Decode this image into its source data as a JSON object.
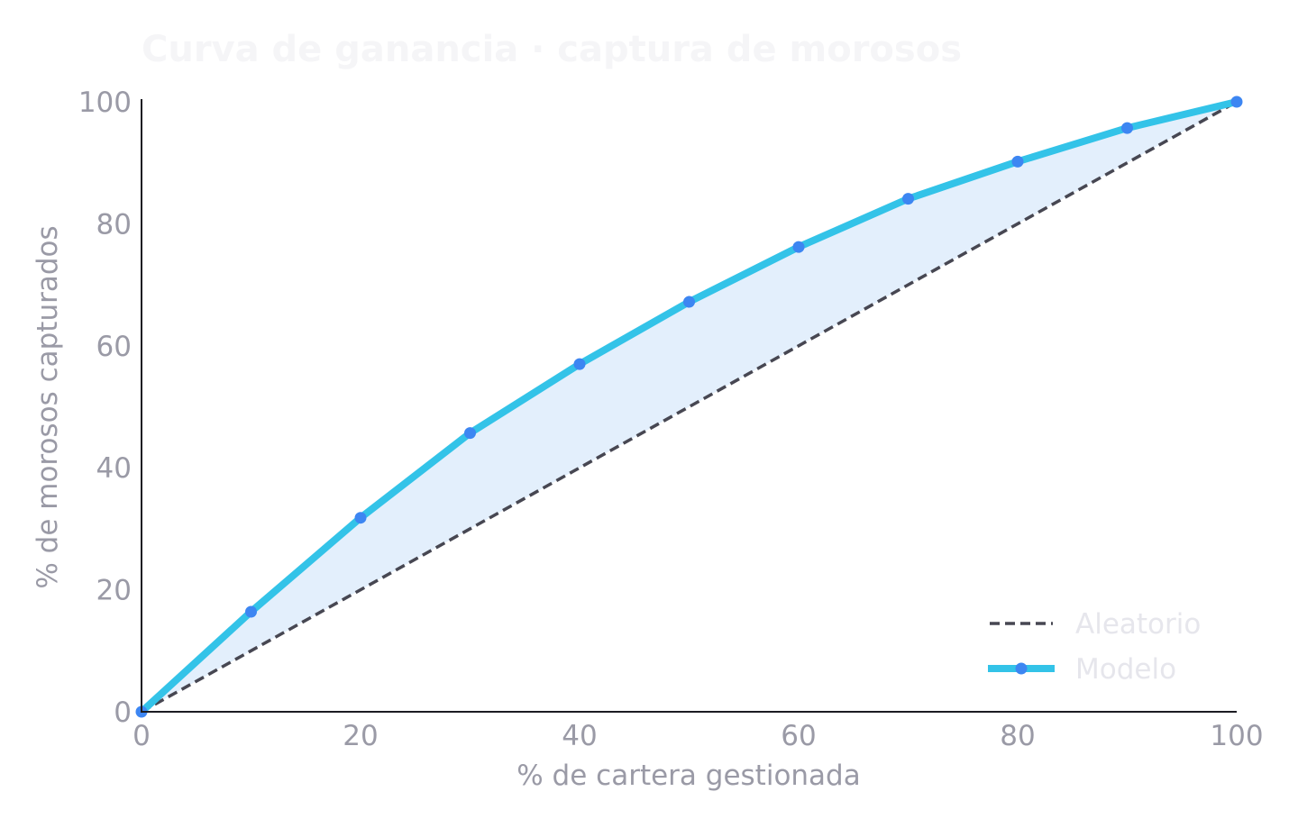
{
  "colors": {
    "title": "#f5f5f7",
    "axis_line": "#1c1c22",
    "tick_text": "#9a9aa6",
    "axis_title": "#9a9aa6",
    "legend_text": "#e6e6ec",
    "random_line": "#474752",
    "model_line": "#33c3e8",
    "model_marker": "#3d86f2",
    "fill_area": "#e3effc"
  },
  "chart_data": {
    "type": "line",
    "title": "Curva de ganancia  ·  captura de morosos",
    "xlabel": "% de cartera gestionada",
    "ylabel": "% de morosos capturados",
    "xlim": [
      0,
      100
    ],
    "ylim": [
      0,
      100
    ],
    "x_ticks": [
      "0",
      "20",
      "40",
      "60",
      "80",
      "100"
    ],
    "y_ticks": [
      "0",
      "20",
      "40",
      "60",
      "80",
      "100"
    ],
    "grid": false,
    "legend_position": "bottom-right",
    "fill_between": "Modelo-Aleatorio",
    "series": [
      {
        "name": "Aleatorio",
        "style": "dashed",
        "x": [
          0,
          100
        ],
        "y": [
          0,
          100
        ]
      },
      {
        "name": "Modelo",
        "style": "solid-markers",
        "x": [
          0,
          10,
          20,
          30,
          40,
          50,
          60,
          70,
          80,
          90,
          100
        ],
        "y": [
          0,
          16.4,
          31.8,
          45.7,
          57.0,
          67.2,
          76.2,
          84.1,
          90.2,
          95.7,
          100
        ]
      }
    ]
  }
}
